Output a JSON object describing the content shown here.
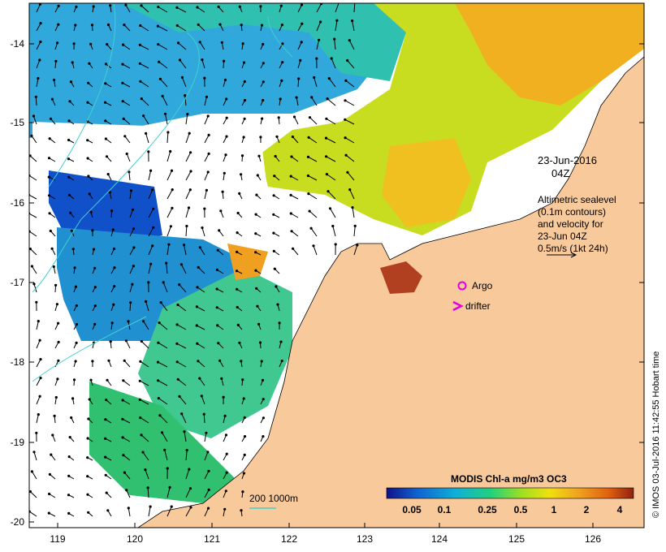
{
  "map": {
    "x_ticks": [
      "119",
      "120",
      "121",
      "122",
      "123",
      "124",
      "125",
      "126"
    ],
    "y_ticks": [
      "-14",
      "-15",
      "-16",
      "-17",
      "-18",
      "-19",
      "-20"
    ],
    "date_line1": "23-Jun-2016",
    "date_line2": "04Z",
    "info_lines": [
      "Altimetric sealevel",
      "(0.1m contours)",
      "and velocity for",
      "23-Jun 04Z",
      "0.5m/s (1kt 24h)"
    ],
    "argo_label": "Argo",
    "drifter_label": "drifter",
    "depth_label": "200  1000m",
    "credit": "© IMOS 03-Jul-2016 11:42:55 Hobart time",
    "colors": {
      "land": "#f8c99a",
      "argo_marker": "#e000e0",
      "drifter_marker": "#e000e0",
      "contour": "#40d0d0"
    }
  },
  "legend": {
    "title": "MODIS Chl-a mg/m3 OC3",
    "ticks": [
      "0.05",
      "0.1",
      "0.25",
      "0.5",
      "1",
      "2",
      "4"
    ],
    "colorscale": [
      "#10108a",
      "#1060d0",
      "#10b0d8",
      "#20d080",
      "#a0e020",
      "#f0e010",
      "#f0a020",
      "#e06010",
      "#902010"
    ]
  }
}
